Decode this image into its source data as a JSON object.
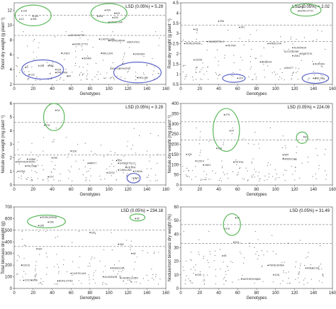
{
  "chart_data": [
    {
      "type": "scatter",
      "xlabel": "Genotypes",
      "ylabel": "Shoot dry weight (g plant⁻¹)",
      "xlim": [
        0,
        160
      ],
      "ylim": [
        2,
        13
      ],
      "xticks": [
        0,
        20,
        40,
        60,
        80,
        100,
        120,
        140,
        160
      ],
      "yticks": [
        2,
        4,
        6,
        8,
        10,
        12
      ],
      "lsd": "LSD (0.05%) = 5.29",
      "reference_lines": [
        11.3,
        8.6
      ],
      "labels": [
        {
          "text": "126",
          "x": 8,
          "y": 11.9
        },
        {
          "text": "13",
          "x": 6,
          "y": 10.8
        },
        {
          "text": "184",
          "x": 20,
          "y": 11.2
        },
        {
          "text": "256",
          "x": 18,
          "y": 10.8
        },
        {
          "text": "539",
          "x": 96,
          "y": 12.0
        },
        {
          "text": "629",
          "x": 106,
          "y": 11.6
        },
        {
          "text": "508",
          "x": 88,
          "y": 11.2
        },
        {
          "text": "639",
          "x": 104,
          "y": 11.0
        },
        {
          "text": "ANDECHA",
          "x": 100,
          "y": 10.4
        },
        {
          "text": "MOGGETTE",
          "x": 58,
          "y": 8.6
        },
        {
          "text": "CASTELUM",
          "x": 90,
          "y": 8.1
        },
        {
          "text": "PEREGRINA",
          "x": 100,
          "y": 7.9
        },
        {
          "text": "BOLRUS",
          "x": 120,
          "y": 7.7
        },
        {
          "text": "BORLOTTO",
          "x": 62,
          "y": 7.4
        },
        {
          "text": "DOR364",
          "x": 126,
          "y": 6.1
        },
        {
          "text": "LINEX",
          "x": 50,
          "y": 6.2
        },
        {
          "text": "BELUGA",
          "x": 92,
          "y": 6.2
        },
        {
          "text": "DIANA",
          "x": 72,
          "y": 5.5
        },
        {
          "text": "PALOMA",
          "x": 44,
          "y": 3.6
        },
        {
          "text": "MATHERHORN",
          "x": 102,
          "y": 4.1
        },
        {
          "text": "RGL180",
          "x": 130,
          "y": 2.9
        },
        {
          "text": "5",
          "x": 12,
          "y": 4.3
        },
        {
          "text": "122",
          "x": 16,
          "y": 3.3
        },
        {
          "text": "185",
          "x": 26,
          "y": 4.5
        },
        {
          "text": "248",
          "x": 36,
          "y": 4.5
        },
        {
          "text": "324",
          "x": 44,
          "y": 4.0
        },
        {
          "text": "82",
          "x": 56,
          "y": 3.1
        }
      ],
      "ellipses": [
        {
          "cx": 20,
          "cy": 11.3,
          "rx": 19,
          "ry": 1.4,
          "color": "#5cb85c"
        },
        {
          "cx": 100,
          "cy": 11.6,
          "rx": 19,
          "ry": 1.3,
          "color": "#5cb85c"
        },
        {
          "cx": 30,
          "cy": 4.0,
          "rx": 22,
          "ry": 1.3,
          "color": "#5b63c8"
        },
        {
          "cx": 130,
          "cy": 3.6,
          "rx": 25,
          "ry": 1.4,
          "color": "#5b63c8"
        }
      ]
    },
    {
      "type": "scatter",
      "xlabel": "Genotypes",
      "ylabel": "Root dry weight (g plant⁻¹)",
      "xlim": [
        0,
        160
      ],
      "ylim": [
        0.5,
        4.5
      ],
      "xticks": [
        0,
        20,
        40,
        60,
        80,
        100,
        120,
        140,
        160
      ],
      "yticks": [
        0.5,
        1,
        1.5,
        2,
        2.5,
        3,
        3.5,
        4,
        4.5
      ],
      "lsd": "LSD (0.05%) = 2.02",
      "reference_lines": [
        3.4,
        2.6
      ],
      "labels": [
        {
          "text": "82",
          "x": 126,
          "y": 4.3
        },
        {
          "text": "BORLOTTO",
          "x": 124,
          "y": 4.1
        },
        {
          "text": "13",
          "x": 14,
          "y": 3.2
        },
        {
          "text": "256",
          "x": 40,
          "y": 3.6
        },
        {
          "text": "341",
          "x": 62,
          "y": 3.3
        },
        {
          "text": "PEREGRINA",
          "x": 4,
          "y": 2.5
        },
        {
          "text": "GANDETELO",
          "x": 28,
          "y": 2.6
        },
        {
          "text": "PETRA",
          "x": 48,
          "y": 2.4
        },
        {
          "text": "ANDECHA",
          "x": 92,
          "y": 2.5
        },
        {
          "text": "ALMONGA",
          "x": 118,
          "y": 2.3
        },
        {
          "text": "ENESTIA",
          "x": 126,
          "y": 2.0
        },
        {
          "text": "COCAGNE",
          "x": 110,
          "y": 2.1
        },
        {
          "text": "VAK1",
          "x": 118,
          "y": 1.9
        },
        {
          "text": "DOR364",
          "x": 140,
          "y": 1.5
        },
        {
          "text": "12026",
          "x": 14,
          "y": 1.7
        },
        {
          "text": "BELUGA",
          "x": 84,
          "y": 1.6
        },
        {
          "text": "B4477",
          "x": 110,
          "y": 1.3
        },
        {
          "text": "324",
          "x": 60,
          "y": 0.8
        },
        {
          "text": "RGL18G",
          "x": 140,
          "y": 0.8
        }
      ],
      "ellipses": [
        {
          "cx": 132,
          "cy": 4.15,
          "rx": 16,
          "ry": 0.3,
          "color": "#5cb85c"
        },
        {
          "cx": 56,
          "cy": 0.8,
          "rx": 12,
          "ry": 0.2,
          "color": "#5b63c8"
        },
        {
          "cx": 142,
          "cy": 0.8,
          "rx": 14,
          "ry": 0.25,
          "color": "#5b63c8"
        }
      ]
    },
    {
      "type": "scatter",
      "xlabel": "Genotypes",
      "ylabel": "Nodule dry weight (mg plant⁻¹)",
      "xlim": [
        0,
        160
      ],
      "ylim": [
        0,
        6
      ],
      "xticks": [
        0,
        20,
        40,
        60,
        80,
        100,
        120,
        140,
        160
      ],
      "yticks": [
        0,
        1,
        2,
        3,
        4,
        5,
        6
      ],
      "lsd": "LSD (0.05%) = 3.29",
      "reference_lines": [
        4.6,
        2.2
      ],
      "labels": [
        {
          "text": "34",
          "x": 44,
          "y": 5.5
        },
        {
          "text": "276",
          "x": 32,
          "y": 4.4
        },
        {
          "text": "328",
          "x": 60,
          "y": 2.5
        },
        {
          "text": "290",
          "x": 40,
          "y": 2.0
        },
        {
          "text": "MATHERHORN",
          "x": 2,
          "y": 1.7
        },
        {
          "text": "12026",
          "x": 14,
          "y": 1.9
        },
        {
          "text": "PALOMA",
          "x": 12,
          "y": 1.4
        },
        {
          "text": "B4477",
          "x": 78,
          "y": 1.6
        },
        {
          "text": "654",
          "x": 108,
          "y": 1.8
        },
        {
          "text": "GANDETELO",
          "x": 110,
          "y": 1.6
        },
        {
          "text": "PETRA",
          "x": 118,
          "y": 1.3
        },
        {
          "text": "CATALINA",
          "x": 110,
          "y": 1.1
        },
        {
          "text": "DIANA",
          "x": 126,
          "y": 1.0
        },
        {
          "text": "VG11",
          "x": 4,
          "y": 1.0
        },
        {
          "text": "272",
          "x": 36,
          "y": 0.6
        },
        {
          "text": "G2S2",
          "x": 98,
          "y": 0.9
        },
        {
          "text": "B47",
          "x": 126,
          "y": 0.5
        }
      ],
      "ellipses": [
        {
          "cx": 42,
          "cy": 5.0,
          "rx": 11,
          "ry": 1.0,
          "color": "#5cb85c"
        },
        {
          "cx": 126,
          "cy": 0.5,
          "rx": 7,
          "ry": 0.35,
          "color": "#5b63c8"
        }
      ]
    },
    {
      "type": "scatter",
      "xlabel": "Genotypes",
      "ylabel": "Nodule dry weight (mg plant⁻¹)",
      "xlim": [
        0,
        160
      ],
      "ylim": [
        0,
        400
      ],
      "xticks": [
        0,
        20,
        40,
        60,
        80,
        100,
        120,
        140,
        160
      ],
      "yticks": [
        0,
        50,
        100,
        150,
        200,
        250,
        300,
        350,
        400
      ],
      "lsd": "LSD (0.05%) = 224.09",
      "reference_lines": [
        310,
        220
      ],
      "labels": [
        {
          "text": "276",
          "x": 46,
          "y": 345
        },
        {
          "text": "34",
          "x": 52,
          "y": 266
        },
        {
          "text": "82",
          "x": 130,
          "y": 236
        },
        {
          "text": "256",
          "x": 38,
          "y": 180
        },
        {
          "text": "105",
          "x": 6,
          "y": 150
        },
        {
          "text": "584",
          "x": 108,
          "y": 148
        },
        {
          "text": "ANDECHA",
          "x": 108,
          "y": 128
        },
        {
          "text": "12014",
          "x": 16,
          "y": 118
        },
        {
          "text": "PETRA",
          "x": 56,
          "y": 112
        },
        {
          "text": "VAK1",
          "x": 24,
          "y": 98
        }
      ],
      "ellipses": [
        {
          "cx": 48,
          "cy": 270,
          "rx": 14,
          "ry": 105,
          "color": "#5cb85c"
        },
        {
          "cx": 128,
          "cy": 232,
          "rx": 6,
          "ry": 28,
          "color": "#5cb85c"
        }
      ]
    },
    {
      "type": "scatter",
      "xlabel": "Genotypes",
      "ylabel": "Total biomass dry weight (g)",
      "xlim": [
        0,
        160
      ],
      "ylim": [
        0,
        700
      ],
      "xticks": [
        0,
        20,
        40,
        60,
        80,
        100,
        120,
        140,
        160
      ],
      "yticks": [
        0,
        100,
        200,
        300,
        400,
        500,
        600,
        700
      ],
      "lsd": "LSD (0.05%) = 234.18",
      "reference_lines": [
        500,
        360
      ],
      "labels": [
        {
          "text": "PEREGRINA",
          "x": 28,
          "y": 610
        },
        {
          "text": "256",
          "x": 36,
          "y": 570
        },
        {
          "text": "185",
          "x": 26,
          "y": 540
        },
        {
          "text": "82",
          "x": 128,
          "y": 600
        },
        {
          "text": "525",
          "x": 80,
          "y": 480
        },
        {
          "text": "384",
          "x": 110,
          "y": 380
        },
        {
          "text": "587",
          "x": 24,
          "y": 340
        },
        {
          "text": "98",
          "x": 124,
          "y": 300
        },
        {
          "text": "12016",
          "x": 8,
          "y": 200
        },
        {
          "text": "ANDECHA",
          "x": 102,
          "y": 175
        },
        {
          "text": "CASTELUM",
          "x": 60,
          "y": 130
        },
        {
          "text": "ALMONGA",
          "x": 94,
          "y": 100
        },
        {
          "text": "CERRILUCEN",
          "x": 112,
          "y": 90
        },
        {
          "text": "COCAGNE",
          "x": 10,
          "y": 70
        },
        {
          "text": "BORLOTTO",
          "x": 46,
          "y": 65
        }
      ],
      "ellipses": [
        {
          "cx": 34,
          "cy": 575,
          "rx": 20,
          "ry": 55,
          "color": "#5cb85c"
        },
        {
          "cx": 130,
          "cy": 610,
          "rx": 8,
          "ry": 30,
          "color": "#5cb85c"
        }
      ]
    },
    {
      "type": "scatter",
      "xlabel": "Genotypes",
      "ylabel": "Nodule/root biomass dry weight (%)",
      "xlim": [
        0,
        160
      ],
      "ylim": [
        0,
        60
      ],
      "xticks": [
        0,
        20,
        40,
        60,
        80,
        100,
        120,
        140,
        160
      ],
      "yticks": [
        0,
        10,
        20,
        30,
        40,
        50,
        60
      ],
      "lsd": "LSD (0.05%) = 31.49",
      "reference_lines": [
        47,
        33
      ],
      "labels": [
        {
          "text": "34",
          "x": 58,
          "y": 52
        },
        {
          "text": "276",
          "x": 46,
          "y": 44
        },
        {
          "text": "324",
          "x": 56,
          "y": 34
        },
        {
          "text": "98",
          "x": 44,
          "y": 24
        },
        {
          "text": "PEREGRINA",
          "x": 92,
          "y": 17
        },
        {
          "text": "ANDECHA",
          "x": 132,
          "y": 15
        },
        {
          "text": "105",
          "x": 16,
          "y": 10
        },
        {
          "text": "129",
          "x": 98,
          "y": 10
        },
        {
          "text": "MATHERHORN",
          "x": 64,
          "y": 7
        }
      ],
      "ellipses": [
        {
          "cx": 54,
          "cy": 47,
          "rx": 9,
          "ry": 8,
          "color": "#5cb85c"
        }
      ]
    }
  ]
}
